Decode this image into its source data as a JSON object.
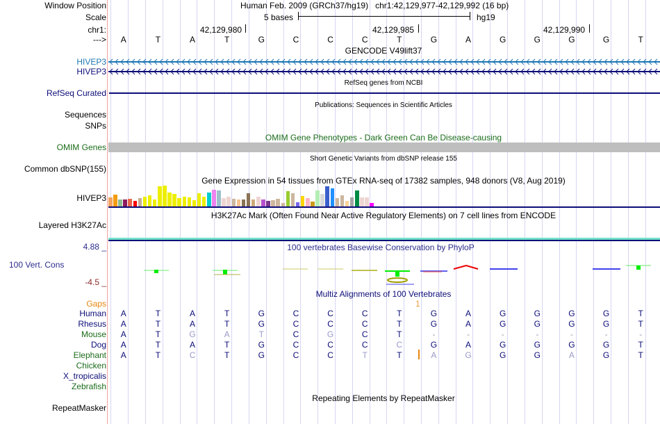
{
  "header": {
    "window_position_label": "Window Position",
    "scale_label": "Scale",
    "chrom_label": "chr1:",
    "strand_label": "--->",
    "assembly_title": "Human Feb. 2009 (GRCh37/hg19)   chr1:42,129,977-42,129,992 (16 bp)",
    "scale_text": "5 bases",
    "scale_db": "hg19",
    "position_ticks": [
      "42,129,980",
      "42,129,985",
      "42,129,990"
    ],
    "sequence": [
      "A",
      "T",
      "A",
      "T",
      "G",
      "C",
      "C",
      "C",
      "T",
      "G",
      "A",
      "G",
      "G",
      "G",
      "G",
      "T"
    ]
  },
  "tracks": {
    "gencode": {
      "title": "GENCODE V49lift37",
      "label": "HIVEP3",
      "color": "#1f77b4"
    },
    "gencode2": {
      "label": "HIVEP3",
      "color": "#0c0c78"
    },
    "refseq": {
      "title": "RefSeq genes from NCBI",
      "label": "RefSeq Curated",
      "color": "#0c0c78"
    },
    "publications": {
      "title": "Publications: Sequences in Scientific Articles",
      "label1": "Sequences",
      "label2": "SNPs"
    },
    "omim": {
      "title": "OMIM Gene Phenotypes - Dark Green Can Be Disease-causing",
      "label": "OMIM Genes",
      "color": "#1a6b1a",
      "bar_color": "#bebebe"
    },
    "dbsnp": {
      "title": "Short Genetic Variants from dbSNP release 155",
      "label": "Common dbSNP(155)"
    },
    "gtex": {
      "title": "Gene Expression in 54 tissues from GTEx RNA-seq of 17382 samples, 948 donors (V8, Aug 2019)",
      "label": "HIVEP3",
      "bars": [
        {
          "color": "#f4a460",
          "value": 0.42
        },
        {
          "color": "#f39c12",
          "value": 0.55
        },
        {
          "color": "#8fbc8f",
          "value": 0.33
        },
        {
          "color": "#8b1a5e",
          "value": 0.33
        },
        {
          "color": "#e8674a",
          "value": 0.35
        },
        {
          "color": "#ff0000",
          "value": 0.27
        },
        {
          "color": "#c8ad95",
          "value": 0.4
        },
        {
          "color": "#eeee00",
          "value": 0.44
        },
        {
          "color": "#eeee00",
          "value": 0.53
        },
        {
          "color": "#eeee00",
          "value": 0.33
        },
        {
          "color": "#eeee00",
          "value": 0.92
        },
        {
          "color": "#eeee00",
          "value": 0.96
        },
        {
          "color": "#eeee00",
          "value": 0.63
        },
        {
          "color": "#eeee00",
          "value": 0.59
        },
        {
          "color": "#eeee00",
          "value": 0.4
        },
        {
          "color": "#eeee00",
          "value": 0.46
        },
        {
          "color": "#eeee00",
          "value": 0.42
        },
        {
          "color": "#eeee00",
          "value": 0.29
        },
        {
          "color": "#eeee00",
          "value": 0.61
        },
        {
          "color": "#eeee00",
          "value": 0.44
        },
        {
          "color": "#00cdcd",
          "value": 0.63
        },
        {
          "color": "#ee82ee",
          "value": 0.78
        },
        {
          "color": "#9ebfcc",
          "value": 0.75
        },
        {
          "color": "#eed5d2",
          "value": 0.38
        },
        {
          "color": "#eed5d2",
          "value": 0.44
        },
        {
          "color": "#cdb79e",
          "value": 0.35
        },
        {
          "color": "#f5c38f",
          "value": 0.33
        },
        {
          "color": "#8b7355",
          "value": 0.33
        },
        {
          "color": "#8b7355",
          "value": 0.62
        },
        {
          "color": "#cdaa7d",
          "value": 0.31
        },
        {
          "color": "#eed5d2",
          "value": 0.44
        },
        {
          "color": "#b452cd",
          "value": 0.33
        },
        {
          "color": "#7a378b",
          "value": 0.25
        },
        {
          "color": "#cdb79e",
          "value": 0.29
        },
        {
          "color": "#cdb79e",
          "value": 0.36
        },
        {
          "color": "#cdb79e",
          "value": 0.17
        },
        {
          "color": "#9acd32",
          "value": 0.72
        },
        {
          "color": "#cdb79e",
          "value": 0.6
        },
        {
          "color": "#7b68ee",
          "value": 0.2
        },
        {
          "color": "#ffd700",
          "value": 0.48
        },
        {
          "color": "#ffb6c1",
          "value": 0.38
        },
        {
          "color": "#cd9b1d",
          "value": 0.22
        },
        {
          "color": "#b4eeb4",
          "value": 0.73
        },
        {
          "color": "#d9d9d9",
          "value": 0.57
        },
        {
          "color": "#3a5fcd",
          "value": 0.92
        },
        {
          "color": "#1e90ff",
          "value": 0.85
        },
        {
          "color": "#cdb79e",
          "value": 0.4
        },
        {
          "color": "#cdb79e",
          "value": 0.51
        },
        {
          "color": "#ffd39b",
          "value": 0.27
        },
        {
          "color": "#a6a6a6",
          "value": 0.41
        },
        {
          "color": "#008b45",
          "value": 0.73
        },
        {
          "color": "#eed5d2",
          "value": 0.41
        },
        {
          "color": "#eed5d2",
          "value": 0.41
        },
        {
          "color": "#ff00ff",
          "value": 0.16
        }
      ]
    },
    "h3k27ac": {
      "title": "H3K27Ac Mark (Often Found Near Active Regulatory Elements) on 7 cell lines from ENCODE",
      "label": "Layered H3K27Ac"
    },
    "phylop": {
      "title": "100 vertebrates Basewise Conservation by PhyloP",
      "label": "100 Vert. Cons",
      "max": "4.88 _",
      "min": "-4.5 _"
    },
    "multiz": {
      "title": "Multiz Alignments of 100 Vertebrates",
      "gaps_label": "Gaps",
      "gap_marker": "1",
      "species": [
        {
          "name": "Human",
          "color": "#0c0c78",
          "seq": [
            "A",
            "T",
            "A",
            "T",
            "G",
            "C",
            "C",
            "C",
            "T",
            "G",
            "A",
            "G",
            "G",
            "G",
            "G",
            "T"
          ]
        },
        {
          "name": "Rhesus",
          "color": "#0c0c78",
          "seq": [
            "A",
            "T",
            "A",
            "T",
            "G",
            "C",
            "C",
            "C",
            "T",
            "G",
            "A",
            "G",
            "G",
            "G",
            "G",
            "T"
          ]
        },
        {
          "name": "Mouse",
          "color": "#1a6b1a",
          "seq": [
            "A",
            "T",
            "G",
            "A",
            "T",
            "C",
            "G",
            "C",
            "T",
            "-",
            "-",
            "-",
            "-",
            "-",
            "-",
            "-"
          ]
        },
        {
          "name": "Dog",
          "color": "#0c0c78",
          "seq": [
            "A",
            "T",
            "A",
            "T",
            "G",
            "C",
            "C",
            "C",
            "C",
            "G",
            "A",
            "G",
            "G",
            "G",
            "G",
            "T"
          ]
        },
        {
          "name": "Elephant",
          "color": "#1a6b1a",
          "seq": [
            "A",
            "T",
            "C",
            "T",
            "G",
            "C",
            "C",
            "T",
            "T",
            "A",
            "G",
            "G",
            "G",
            "A",
            "G",
            "T"
          ]
        },
        {
          "name": "Chicken",
          "color": "#1a6b1a",
          "seq": []
        },
        {
          "name": "X_tropicalis",
          "color": "#0c0c78",
          "seq": []
        },
        {
          "name": "Zebrafish",
          "color": "#1a6b1a",
          "seq": []
        }
      ]
    },
    "repeatmasker": {
      "title": "Repeating Elements by RepeatMasker",
      "label": "RepeatMasker"
    }
  }
}
